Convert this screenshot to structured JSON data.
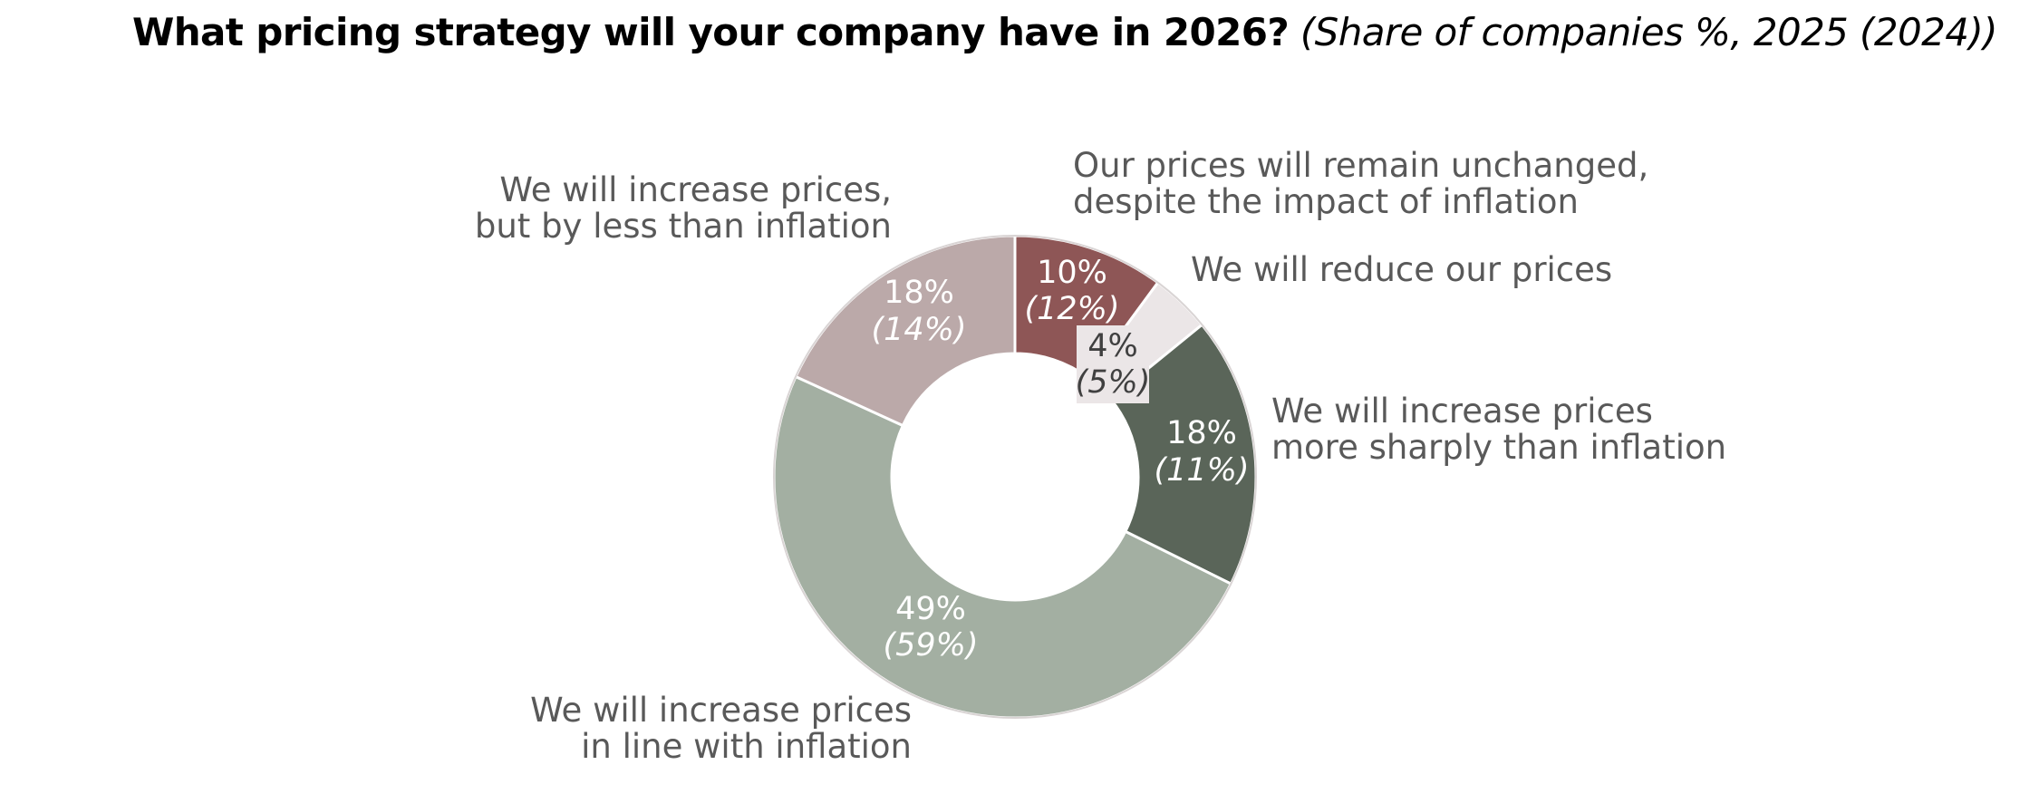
{
  "header": {
    "question": "What pricing strategy will your company have in 2026?",
    "subtitle": "(Share of companies %, 2025 (2024))"
  },
  "chart_data": {
    "type": "pie",
    "variant": "donut",
    "title": "What pricing strategy will your company have in 2026?",
    "subtitle": "(Share of companies %, 2025 (2024))",
    "series": [
      {
        "name": "2025",
        "values": [
          10,
          4,
          18,
          49,
          18
        ]
      },
      {
        "name": "2024",
        "values": [
          12,
          5,
          11,
          59,
          14
        ]
      }
    ],
    "slices": [
      {
        "key": "unchanged",
        "label_lines": [
          "Our prices will remain unchanged,",
          "despite the impact of inflation"
        ],
        "value": 10,
        "value_text": "10%",
        "previous": 12,
        "previous_text": "(12%)",
        "color": "#8e5656"
      },
      {
        "key": "reduce",
        "label_lines": [
          "We will reduce our prices"
        ],
        "value": 4,
        "value_text": "4%",
        "previous": 5,
        "previous_text": "(5%)",
        "color": "#ebe6e7"
      },
      {
        "key": "more-than-inflation",
        "label_lines": [
          "We will increase prices",
          "more sharply than inflation"
        ],
        "value": 18,
        "value_text": "18%",
        "previous": 11,
        "previous_text": "(11%)",
        "color": "#5a6559"
      },
      {
        "key": "in-line-with-inflation",
        "label_lines": [
          "We will increase prices",
          "in line with inflation"
        ],
        "value": 49,
        "value_text": "49%",
        "previous": 59,
        "previous_text": "(59%)",
        "color": "#a3afa2"
      },
      {
        "key": "less-than-inflation",
        "label_lines": [
          "We will increase prices,",
          "but by less than inflation"
        ],
        "value": 18,
        "value_text": "18%",
        "previous": 14,
        "previous_text": "(14%)",
        "color": "#bba9a9"
      }
    ]
  }
}
